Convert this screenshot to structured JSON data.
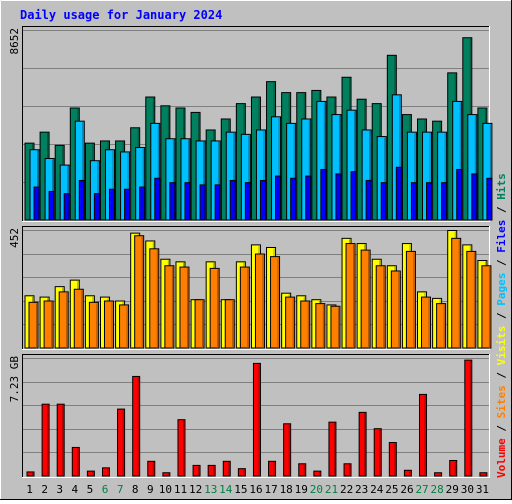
{
  "chart_data": {
    "type": "bar",
    "title": "Daily usage for January 2024",
    "days": [
      "1",
      "2",
      "3",
      "4",
      "5",
      "6",
      "7",
      "8",
      "9",
      "10",
      "11",
      "12",
      "13",
      "14",
      "15",
      "16",
      "17",
      "18",
      "19",
      "20",
      "21",
      "22",
      "23",
      "24",
      "25",
      "26",
      "27",
      "28",
      "29",
      "30",
      "31"
    ],
    "weekend_days": [
      6,
      7,
      13,
      14,
      20,
      21,
      27,
      28
    ],
    "colors": {
      "title": "#0000ff",
      "weekend_label": "#008040",
      "pages": "#00c0ff",
      "hits": "#00805f",
      "files": "#0000ff",
      "sites": "#ff8000",
      "visits": "#ffff00",
      "volume": "#ff0000",
      "panel_bg": "#c0c0c0"
    },
    "panels": [
      {
        "name": "hits-files-pages",
        "max_label": "8652",
        "max": 8652,
        "series": [
          {
            "name": "Hits",
            "values": [
              3500,
              4000,
              3400,
              5100,
              3500,
              3600,
              3600,
              4200,
              5600,
              5200,
              5100,
              4900,
              4100,
              4600,
              5300,
              5600,
              6300,
              5800,
              5800,
              5900,
              5600,
              6500,
              5500,
              5300,
              7500,
              4800,
              4600,
              4500,
              6700,
              8300,
              5100
            ]
          },
          {
            "name": "Pages",
            "values": [
              3200,
              2800,
              2500,
              4500,
              2700,
              3200,
              3100,
              3300,
              4400,
              3700,
              3700,
              3600,
              3600,
              4000,
              3900,
              4100,
              4700,
              4400,
              4600,
              5400,
              4800,
              5000,
              4100,
              3800,
              5700,
              4000,
              4000,
              4000,
              5400,
              4800,
              4400
            ]
          },
          {
            "name": "Files",
            "values": [
              1500,
              1300,
              1200,
              1800,
              1200,
              1400,
              1400,
              1500,
              1900,
              1700,
              1700,
              1600,
              1600,
              1800,
              1700,
              1800,
              2000,
              1900,
              2000,
              2300,
              2100,
              2200,
              1800,
              1700,
              2400,
              1700,
              1700,
              1700,
              2300,
              2100,
              1900
            ]
          }
        ],
        "side_label": ""
      },
      {
        "name": "visits-sites",
        "max_label": "452",
        "max": 452,
        "series": [
          {
            "name": "Visits",
            "values": [
              200,
              195,
              235,
              260,
              200,
              195,
              180,
              440,
              410,
              340,
              330,
              185,
              330,
              185,
              330,
              395,
              385,
              210,
              200,
              185,
              165,
              420,
              400,
              340,
              315,
              400,
              215,
              190,
              450,
              395,
              335
            ]
          },
          {
            "name": "Sites",
            "values": [
              175,
              180,
              215,
              225,
              175,
              180,
              165,
              430,
              380,
              315,
              310,
              185,
              305,
              185,
              310,
              360,
              350,
              195,
              180,
              170,
              160,
              400,
              375,
              315,
              295,
              370,
              195,
              170,
              420,
              370,
              315
            ]
          }
        ],
        "side_label": ""
      },
      {
        "name": "volume",
        "max_label": "7.23 GB",
        "max": 7.23,
        "series": [
          {
            "name": "Volume",
            "values": [
              0.25,
              4.4,
              4.4,
              1.75,
              0.3,
              0.5,
              4.1,
              6.1,
              0.9,
              0.2,
              3.45,
              0.65,
              0.65,
              0.9,
              0.45,
              6.9,
              0.9,
              3.2,
              0.75,
              0.3,
              3.3,
              0.75,
              3.9,
              2.9,
              2.05,
              0.35,
              5.0,
              0.2,
              0.95,
              7.1,
              0.2
            ]
          }
        ],
        "side_label": ""
      }
    ],
    "legend": [
      "Volume",
      "/",
      "Sites",
      "/",
      "Visits",
      "/",
      "Pages",
      "/",
      "Files",
      "/",
      "Hits"
    ]
  }
}
